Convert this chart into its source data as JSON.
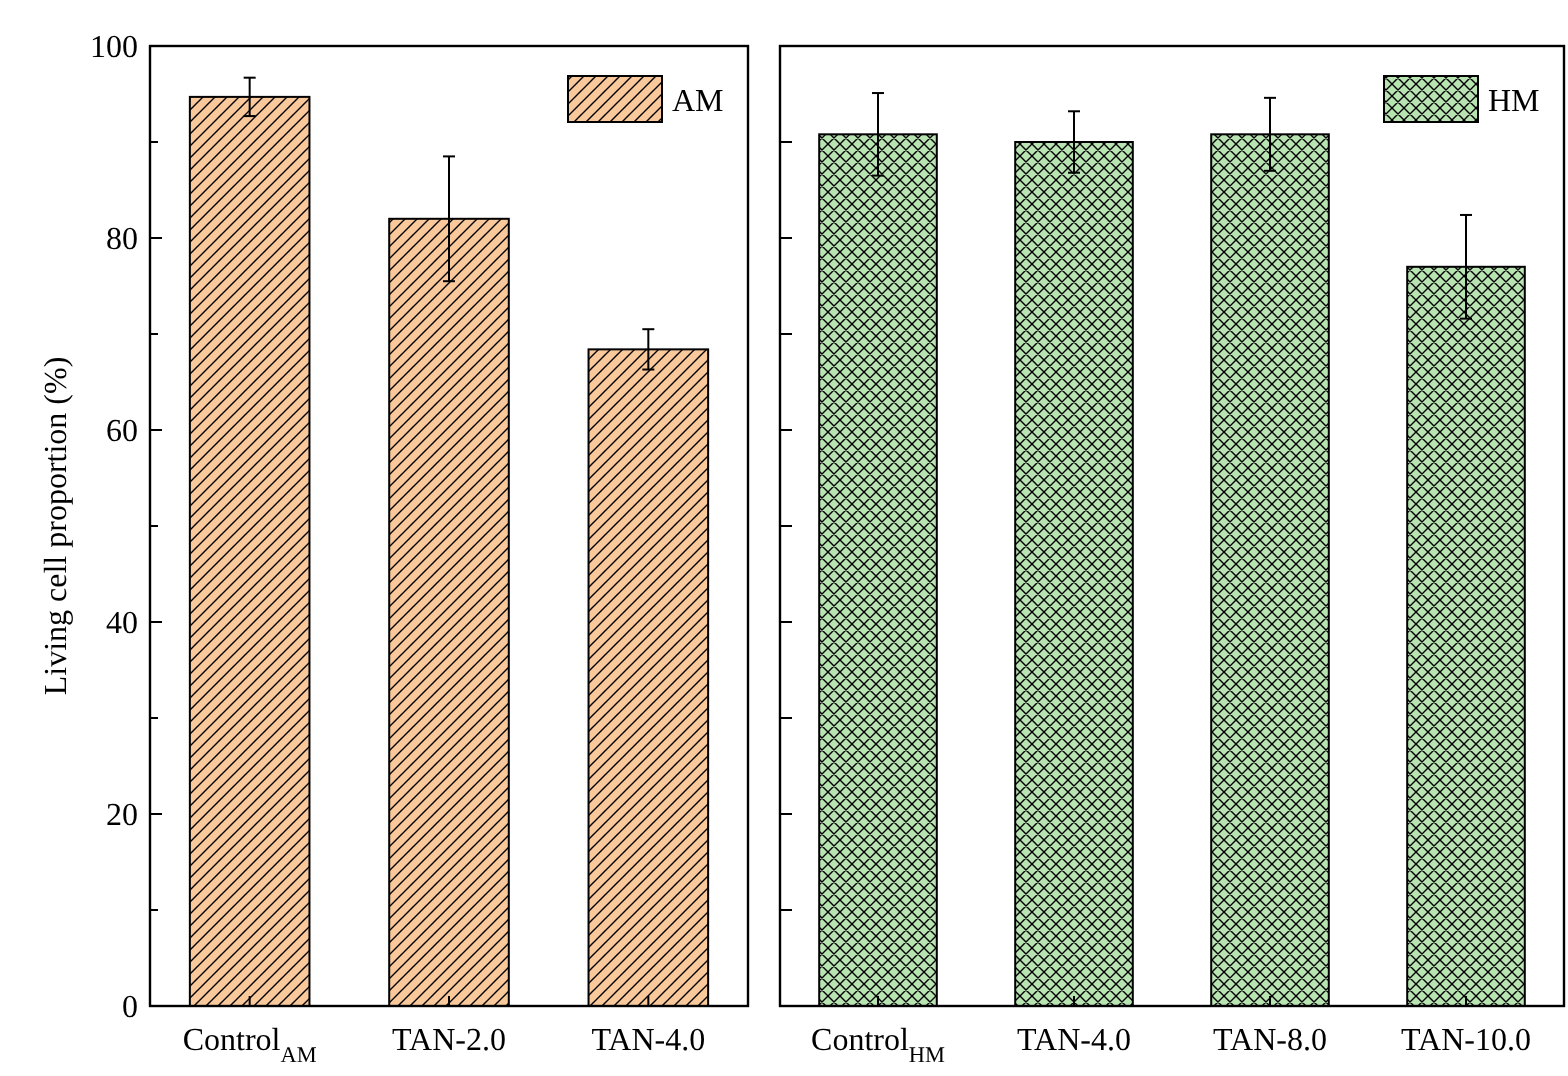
{
  "chart_data": [
    {
      "type": "bar",
      "ylabel": "Living cell proportion (%)",
      "categories": [
        "Control$_{AM}$",
        "TAN-2.0",
        "TAN-4.0"
      ],
      "series": [
        {
          "name": "AM",
          "color": "#f9c89b",
          "values": [
            94.7,
            82.0,
            68.4
          ],
          "errors": [
            2.0,
            6.5,
            2.1
          ]
        }
      ],
      "ylim": [
        0,
        100
      ],
      "yticks": [
        0,
        {
          "value": 10,
          "label": null
        },
        20,
        {
          "value": 30,
          "label": null
        },
        40,
        {
          "value": 50,
          "label": null
        },
        60,
        {
          "value": 70,
          "label": null
        },
        80,
        {
          "value": 90,
          "label": null
        },
        100
      ],
      "legend": "top right",
      "grid": false
    },
    {
      "type": "bar",
      "categories": [
        "Control$_{HM}$",
        "TAN-4.0",
        "TAN-8.0",
        "TAN-10.0"
      ],
      "series": [
        {
          "name": "HM",
          "color": "#b8e4b2",
          "values": [
            90.8,
            90.0,
            90.8,
            77.0
          ],
          "errors": [
            4.3,
            3.2,
            3.8,
            5.4
          ]
        }
      ],
      "ylim": [
        0,
        100
      ],
      "yticks": [
        0,
        10,
        20,
        30,
        40,
        50,
        60,
        70,
        80,
        90,
        100
      ],
      "tick_labels": "x",
      "legend": "top right",
      "grid": false
    }
  ]
}
